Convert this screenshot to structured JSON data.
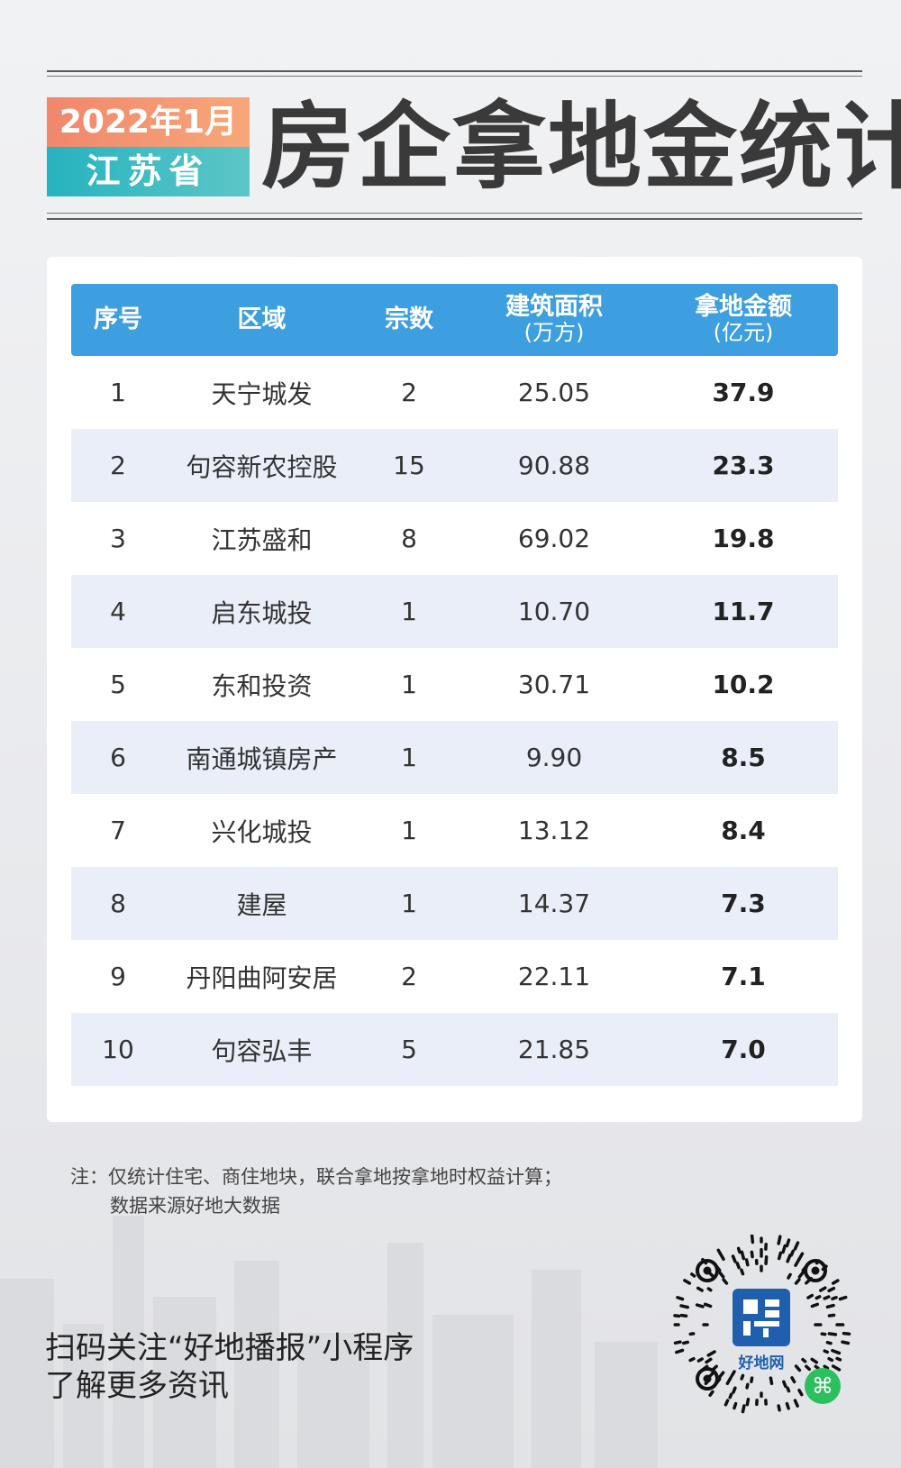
{
  "header": {
    "date_line": "2022年1月",
    "region_line": "江苏省",
    "title": "房企拿地金统计",
    "colors": {
      "date_bg": "#f0876c",
      "region_bg": "#26b3bf",
      "title": "#3a3a3a"
    }
  },
  "table": {
    "header_color": "#3d9ee0",
    "alt_row_color": "#e9eef9",
    "columns": [
      {
        "label": "序号",
        "sub": ""
      },
      {
        "label": "区域",
        "sub": ""
      },
      {
        "label": "宗数",
        "sub": ""
      },
      {
        "label": "建筑面积",
        "sub": "(万方)"
      },
      {
        "label": "拿地金额",
        "sub": "(亿元)"
      }
    ],
    "rows": [
      {
        "rank": "1",
        "name": "天宁城发",
        "count": "2",
        "area": "25.05",
        "amount": "37.9"
      },
      {
        "rank": "2",
        "name": "句容新农控股",
        "count": "15",
        "area": "90.88",
        "amount": "23.3"
      },
      {
        "rank": "3",
        "name": "江苏盛和",
        "count": "8",
        "area": "69.02",
        "amount": "19.8"
      },
      {
        "rank": "4",
        "name": "启东城投",
        "count": "1",
        "area": "10.70",
        "amount": "11.7"
      },
      {
        "rank": "5",
        "name": "东和投资",
        "count": "1",
        "area": "30.71",
        "amount": "10.2"
      },
      {
        "rank": "6",
        "name": "南通城镇房产",
        "count": "1",
        "area": "9.90",
        "amount": "8.5"
      },
      {
        "rank": "7",
        "name": "兴化城投",
        "count": "1",
        "area": "13.12",
        "amount": "8.4"
      },
      {
        "rank": "8",
        "name": "建屋",
        "count": "1",
        "area": "14.37",
        "amount": "7.3"
      },
      {
        "rank": "9",
        "name": "丹阳曲阿安居",
        "count": "2",
        "area": "22.11",
        "amount": "7.1"
      },
      {
        "rank": "10",
        "name": "句容弘丰",
        "count": "5",
        "area": "21.85",
        "amount": "7.0"
      }
    ]
  },
  "note": {
    "line1": "注：仅统计住宅、商住地块，联合拿地按拿地时权益计算；",
    "line2": "数据来源好地大数据"
  },
  "cta": {
    "line1": "扫码关注“好地播报”小程序",
    "line2": "了解更多资讯"
  },
  "qr": {
    "logo_text": "好地网",
    "logo_icon": "keyland-logo-icon",
    "badge_icon": "miniprogram-icon"
  }
}
